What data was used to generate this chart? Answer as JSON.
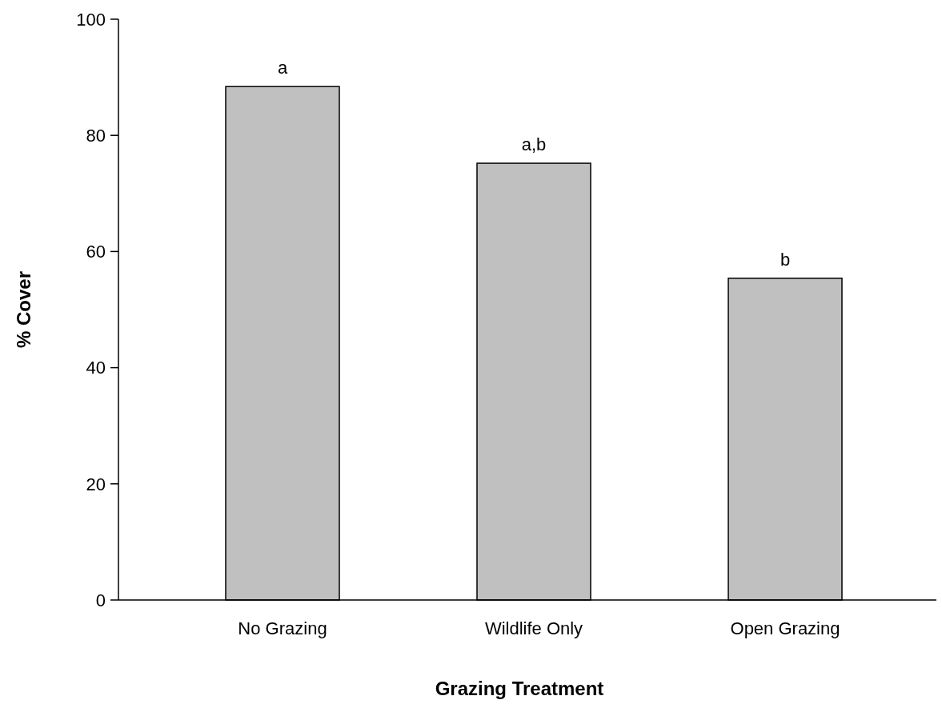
{
  "chart_data": {
    "type": "bar",
    "xlabel": "Grazing Treatment",
    "ylabel": "% Cover",
    "categories": [
      "No Grazing",
      "Wildlife Only",
      "Open Grazing"
    ],
    "values": [
      88.4,
      75.2,
      55.4
    ],
    "color": "#c0c0c0",
    "ylim": [
      0,
      100
    ],
    "yticks": [
      0,
      20,
      40,
      60,
      80,
      100
    ],
    "grid": false,
    "annotations": [
      {
        "text": "a",
        "x": "No Grazing",
        "y": 88.4
      },
      {
        "text": "a,b",
        "x": "Wildlife Only",
        "y": 75.2
      },
      {
        "text": "b",
        "x": "Open Grazing",
        "y": 55.4
      }
    ]
  }
}
